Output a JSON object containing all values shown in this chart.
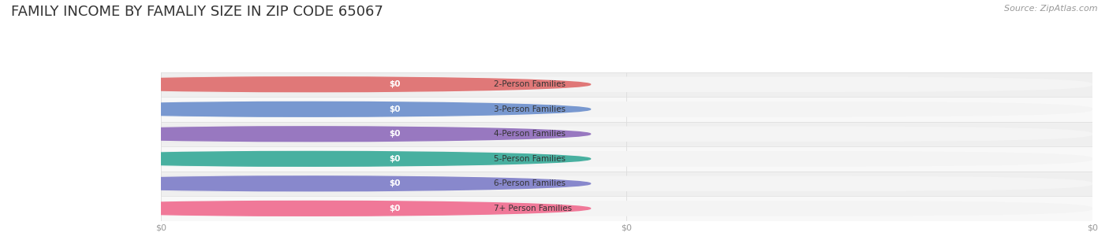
{
  "title": "FAMILY INCOME BY FAMALIY SIZE IN ZIP CODE 65067",
  "source_text": "Source: ZipAtlas.com",
  "categories": [
    "2-Person Families",
    "3-Person Families",
    "4-Person Families",
    "5-Person Families",
    "6-Person Families",
    "7+ Person Families"
  ],
  "values": [
    0,
    0,
    0,
    0,
    0,
    0
  ],
  "bar_colors": [
    "#F2AAAA",
    "#A8C0E0",
    "#C8A8D8",
    "#78CCC0",
    "#AAAADC",
    "#F8A8C0"
  ],
  "circle_colors": [
    "#E07878",
    "#7898D0",
    "#9878C0",
    "#48B0A0",
    "#8888CC",
    "#F07898"
  ],
  "background_color": "#FFFFFF",
  "row_colors": [
    "#EFEFEF",
    "#F8F8F8",
    "#EFEFEF",
    "#F8F8F8",
    "#EFEFEF",
    "#F8F8F8"
  ],
  "title_fontsize": 13,
  "bar_label_fontsize": 7.5,
  "source_fontsize": 8,
  "tick_fontsize": 8,
  "tick_color": "#999999",
  "title_color": "#333333",
  "label_text_color": "#444444",
  "value_text_color": "#FFFFFF",
  "grid_color": "#DDDDDD"
}
